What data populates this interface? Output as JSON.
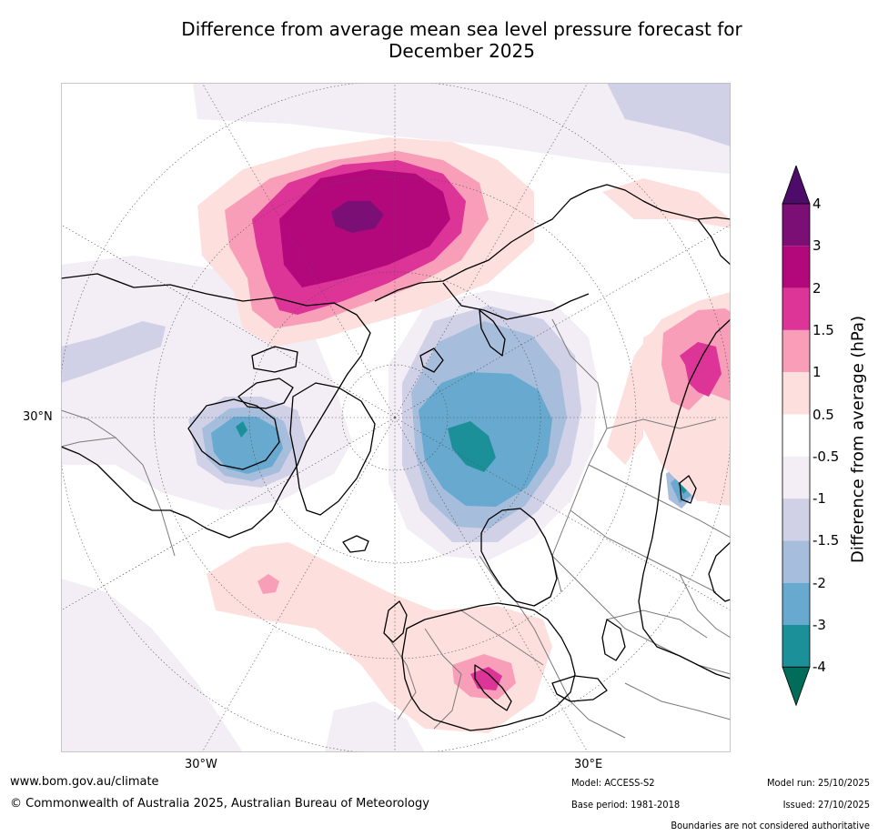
{
  "title": {
    "line1": "Difference from average mean sea level pressure forecast for",
    "line2": "December 2025"
  },
  "map": {
    "projection": "north-polar-stereographic",
    "lat_label": "30°N",
    "lon_labels": [
      "30°W",
      "30°E"
    ],
    "colors": {
      "land_outline": "#000000",
      "borders": "#7a7a7a",
      "graticule": "#555555"
    }
  },
  "legend": {
    "label": "Difference from average (hPa)",
    "ticks": [
      "4",
      "3",
      "2",
      "1.5",
      "1",
      "0.5",
      "-0.5",
      "-1",
      "-1.5",
      "-2",
      "-3",
      "-4"
    ],
    "bins": [
      {
        "range": "3 to 4",
        "color": "#7b0f76"
      },
      {
        "range": "2 to 3",
        "color": "#b2087b"
      },
      {
        "range": "1.5 to 2",
        "color": "#dd3497"
      },
      {
        "range": "1 to 1.5",
        "color": "#f89eb8"
      },
      {
        "range": "0.5 to 1",
        "color": "#fde0dd"
      },
      {
        "range": "-0.5 to 0.5",
        "color": "#ffffff"
      },
      {
        "range": "-1 to -0.5",
        "color": "#f3edf5"
      },
      {
        "range": "-1.5 to -1",
        "color": "#d0d1e6"
      },
      {
        "range": "-2 to -1.5",
        "color": "#a6bddb"
      },
      {
        "range": "-3 to -2",
        "color": "#67a9cf"
      },
      {
        "range": "-4 to -3",
        "color": "#1c9099"
      }
    ],
    "over_color": "#4d0b6a",
    "under_color": "#016c59"
  },
  "footer": {
    "website": "www.bom.gov.au/climate",
    "copyright": "© Commonwealth of Australia 2025, Australian Bureau of Meteorology",
    "model": "Model: ACCESS-S2",
    "base_period": "Base period: 1981-2018",
    "model_run": "Model run: 25/10/2025",
    "issued": "Issued: 27/10/2025",
    "disclaimer": "Boundaries are not considered authoritative"
  }
}
